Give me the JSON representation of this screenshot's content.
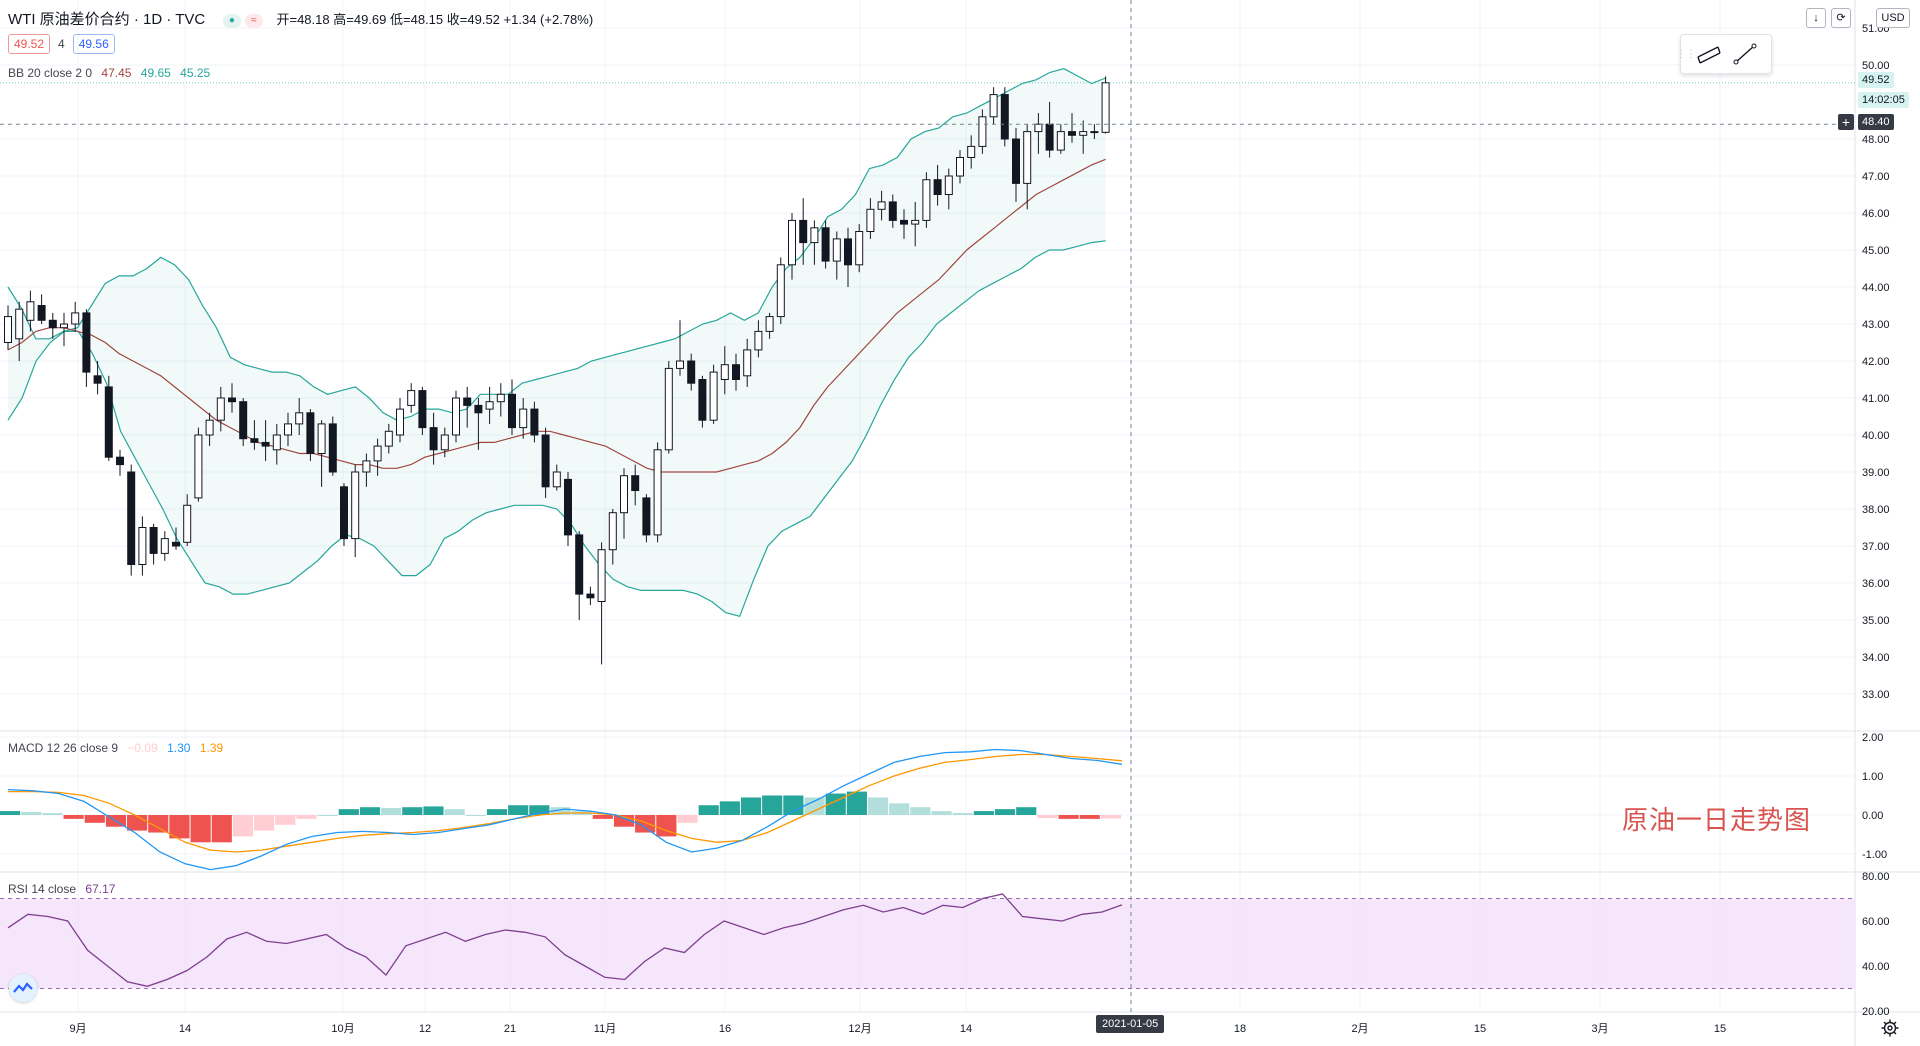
{
  "header": {
    "symbol_line": "WTI 原油差价合约 · 1D · TVC",
    "ohlc": {
      "open_label": "开=",
      "open": "48.18",
      "high_label": "高=",
      "high": "49.69",
      "low_label": "低=",
      "low": "48.15",
      "close_label": "收=",
      "close": "49.52",
      "change": "+1.34 (+2.78%)"
    },
    "sell_price": "49.52",
    "spread": "4",
    "buy_price": "49.56"
  },
  "indicators": {
    "bb": {
      "label": "BB 20 close 2 0",
      "basis": "47.45",
      "upper": "49.65",
      "lower": "45.25"
    },
    "macd": {
      "label": "MACD 12 26 close 9",
      "hist": "−0.09",
      "macd": "1.30",
      "signal": "1.39"
    },
    "rsi": {
      "label": "RSI 14 close",
      "value": "67.17"
    }
  },
  "price_axis": {
    "ticks": [
      "51.00",
      "50.00",
      "48.00",
      "47.00",
      "46.00",
      "45.00",
      "44.00",
      "43.00",
      "42.00",
      "41.00",
      "40.00",
      "39.00",
      "38.00",
      "37.00",
      "36.00",
      "35.00",
      "34.00",
      "33.00"
    ],
    "close_tag": "49.52",
    "countdown": "14:02:05",
    "crosshair_price": "48.40",
    "currency": "USD"
  },
  "macd_axis": {
    "ticks": [
      "2.00",
      "1.00",
      "0.00",
      "-1.00"
    ]
  },
  "rsi_axis": {
    "ticks": [
      "80.00",
      "60.00",
      "40.00",
      "20.00"
    ]
  },
  "time_axis": {
    "labels": [
      "9月",
      "14",
      "10月",
      "12",
      "21",
      "11月",
      "16",
      "12月",
      "14",
      "18",
      "2月",
      "15",
      "3月",
      "15"
    ],
    "crosshair_date": "2021-01-05"
  },
  "annotation": "原油一日走势图",
  "colors": {
    "up": "#ffffff",
    "down": "#131722",
    "bb_band": "#26a69a",
    "bb_basis": "#a1463f",
    "macd_line": "#2196f3",
    "signal_line": "#ff9800",
    "hist_pos_strong": "#26a69a",
    "hist_pos_weak": "#b2dfdb",
    "hist_neg_strong": "#ef5350",
    "hist_neg_weak": "#ffcdd2",
    "rsi_line": "#7e3f8f",
    "rsi_band": "#f1dcfa",
    "annotation": "#d9534f"
  },
  "icons": {
    "download": "arrow-down-icon",
    "fullscreen": "fullscreen-icon",
    "settings": "gear-icon",
    "logo": "tradingview-logo-icon",
    "tools": [
      "parallel-channel-icon",
      "trend-line-icon"
    ]
  },
  "chart_data": {
    "type": "candlestick",
    "title": "WTI 原油差价合约 · 1D · TVC",
    "ylim": [
      32.5,
      51.5
    ],
    "candles": [
      {
        "o": 42.5,
        "h": 43.5,
        "l": 42.3,
        "c": 43.2
      },
      {
        "o": 42.6,
        "h": 43.6,
        "l": 42.0,
        "c": 43.4
      },
      {
        "o": 43.1,
        "h": 43.9,
        "l": 42.8,
        "c": 43.6
      },
      {
        "o": 43.5,
        "h": 43.8,
        "l": 43.0,
        "c": 43.1
      },
      {
        "o": 43.1,
        "h": 43.3,
        "l": 42.6,
        "c": 42.9
      },
      {
        "o": 42.9,
        "h": 43.3,
        "l": 42.4,
        "c": 43.0
      },
      {
        "o": 43.0,
        "h": 43.6,
        "l": 42.8,
        "c": 43.3
      },
      {
        "o": 43.3,
        "h": 43.4,
        "l": 41.3,
        "c": 41.7
      },
      {
        "o": 41.6,
        "h": 42.0,
        "l": 41.1,
        "c": 41.4
      },
      {
        "o": 41.3,
        "h": 41.6,
        "l": 39.3,
        "c": 39.4
      },
      {
        "o": 39.4,
        "h": 39.6,
        "l": 38.9,
        "c": 39.2
      },
      {
        "o": 39.0,
        "h": 39.2,
        "l": 36.2,
        "c": 36.5
      },
      {
        "o": 36.5,
        "h": 37.8,
        "l": 36.2,
        "c": 37.5
      },
      {
        "o": 37.5,
        "h": 37.6,
        "l": 36.5,
        "c": 36.8
      },
      {
        "o": 36.8,
        "h": 37.4,
        "l": 36.6,
        "c": 37.2
      },
      {
        "o": 37.1,
        "h": 37.5,
        "l": 36.9,
        "c": 37.0
      },
      {
        "o": 37.1,
        "h": 38.4,
        "l": 37.0,
        "c": 38.1
      },
      {
        "o": 38.3,
        "h": 40.2,
        "l": 38.2,
        "c": 40.0
      },
      {
        "o": 40.0,
        "h": 40.6,
        "l": 39.7,
        "c": 40.4
      },
      {
        "o": 40.4,
        "h": 41.3,
        "l": 40.1,
        "c": 41.0
      },
      {
        "o": 41.0,
        "h": 41.4,
        "l": 40.6,
        "c": 40.9
      },
      {
        "o": 40.9,
        "h": 41.0,
        "l": 39.7,
        "c": 39.9
      },
      {
        "o": 39.9,
        "h": 40.4,
        "l": 39.6,
        "c": 39.8
      },
      {
        "o": 39.8,
        "h": 40.4,
        "l": 39.3,
        "c": 39.7
      },
      {
        "o": 39.6,
        "h": 40.3,
        "l": 39.2,
        "c": 40.0
      },
      {
        "o": 40.0,
        "h": 40.6,
        "l": 39.7,
        "c": 40.3
      },
      {
        "o": 40.3,
        "h": 41.0,
        "l": 40.0,
        "c": 40.6
      },
      {
        "o": 40.6,
        "h": 40.7,
        "l": 39.3,
        "c": 39.5
      },
      {
        "o": 39.5,
        "h": 40.4,
        "l": 38.6,
        "c": 40.3
      },
      {
        "o": 40.3,
        "h": 40.5,
        "l": 38.9,
        "c": 39.0
      },
      {
        "o": 38.6,
        "h": 38.7,
        "l": 37.0,
        "c": 37.2
      },
      {
        "o": 37.2,
        "h": 39.2,
        "l": 36.7,
        "c": 39.0
      },
      {
        "o": 39.0,
        "h": 39.5,
        "l": 38.6,
        "c": 39.3
      },
      {
        "o": 39.3,
        "h": 39.9,
        "l": 38.9,
        "c": 39.7
      },
      {
        "o": 39.7,
        "h": 40.3,
        "l": 39.5,
        "c": 40.1
      },
      {
        "o": 40.0,
        "h": 41.0,
        "l": 39.8,
        "c": 40.7
      },
      {
        "o": 40.8,
        "h": 41.4,
        "l": 40.6,
        "c": 41.2
      },
      {
        "o": 41.2,
        "h": 41.3,
        "l": 40.0,
        "c": 40.2
      },
      {
        "o": 40.2,
        "h": 40.6,
        "l": 39.2,
        "c": 39.6
      },
      {
        "o": 39.6,
        "h": 40.2,
        "l": 39.4,
        "c": 40.0
      },
      {
        "o": 40.0,
        "h": 41.2,
        "l": 39.8,
        "c": 41.0
      },
      {
        "o": 41.0,
        "h": 41.3,
        "l": 40.2,
        "c": 40.8
      },
      {
        "o": 40.8,
        "h": 41.0,
        "l": 39.6,
        "c": 40.6
      },
      {
        "o": 40.7,
        "h": 41.3,
        "l": 40.3,
        "c": 40.9
      },
      {
        "o": 40.9,
        "h": 41.4,
        "l": 40.5,
        "c": 41.1
      },
      {
        "o": 41.1,
        "h": 41.5,
        "l": 40.0,
        "c": 40.2
      },
      {
        "o": 40.2,
        "h": 41.0,
        "l": 39.9,
        "c": 40.7
      },
      {
        "o": 40.7,
        "h": 40.9,
        "l": 39.8,
        "c": 40.0
      },
      {
        "o": 40.0,
        "h": 40.2,
        "l": 38.3,
        "c": 38.6
      },
      {
        "o": 38.6,
        "h": 39.2,
        "l": 38.5,
        "c": 39.0
      },
      {
        "o": 38.8,
        "h": 39.0,
        "l": 37.0,
        "c": 37.3
      },
      {
        "o": 37.3,
        "h": 37.4,
        "l": 35.0,
        "c": 35.7
      },
      {
        "o": 35.7,
        "h": 35.9,
        "l": 35.4,
        "c": 35.6
      },
      {
        "o": 35.5,
        "h": 37.1,
        "l": 33.8,
        "c": 36.9
      },
      {
        "o": 36.9,
        "h": 38.0,
        "l": 36.5,
        "c": 37.9
      },
      {
        "o": 37.9,
        "h": 39.1,
        "l": 37.2,
        "c": 38.9
      },
      {
        "o": 38.9,
        "h": 39.2,
        "l": 38.1,
        "c": 38.5
      },
      {
        "o": 38.3,
        "h": 38.4,
        "l": 37.1,
        "c": 37.3
      },
      {
        "o": 37.3,
        "h": 39.8,
        "l": 37.1,
        "c": 39.6
      },
      {
        "o": 39.6,
        "h": 42.0,
        "l": 39.5,
        "c": 41.8
      },
      {
        "o": 41.8,
        "h": 43.1,
        "l": 41.6,
        "c": 42.0
      },
      {
        "o": 42.0,
        "h": 42.2,
        "l": 41.2,
        "c": 41.4
      },
      {
        "o": 41.5,
        "h": 41.6,
        "l": 40.2,
        "c": 40.4
      },
      {
        "o": 40.4,
        "h": 41.9,
        "l": 40.3,
        "c": 41.7
      },
      {
        "o": 41.5,
        "h": 42.4,
        "l": 41.1,
        "c": 41.9
      },
      {
        "o": 41.9,
        "h": 42.2,
        "l": 41.2,
        "c": 41.5
      },
      {
        "o": 41.6,
        "h": 42.6,
        "l": 41.3,
        "c": 42.3
      },
      {
        "o": 42.3,
        "h": 43.1,
        "l": 42.1,
        "c": 42.8
      },
      {
        "o": 42.8,
        "h": 43.3,
        "l": 42.6,
        "c": 43.2
      },
      {
        "o": 43.2,
        "h": 44.8,
        "l": 43.0,
        "c": 44.6
      },
      {
        "o": 44.6,
        "h": 46.0,
        "l": 44.2,
        "c": 45.8
      },
      {
        "o": 45.8,
        "h": 46.4,
        "l": 44.6,
        "c": 45.2
      },
      {
        "o": 45.2,
        "h": 45.8,
        "l": 44.6,
        "c": 45.6
      },
      {
        "o": 45.6,
        "h": 45.8,
        "l": 44.5,
        "c": 44.7
      },
      {
        "o": 44.7,
        "h": 45.5,
        "l": 44.2,
        "c": 45.3
      },
      {
        "o": 45.3,
        "h": 45.6,
        "l": 44.0,
        "c": 44.6
      },
      {
        "o": 44.6,
        "h": 45.7,
        "l": 44.4,
        "c": 45.5
      },
      {
        "o": 45.5,
        "h": 46.4,
        "l": 45.3,
        "c": 46.1
      },
      {
        "o": 46.1,
        "h": 46.6,
        "l": 45.8,
        "c": 46.3
      },
      {
        "o": 46.3,
        "h": 46.5,
        "l": 45.6,
        "c": 45.8
      },
      {
        "o": 45.8,
        "h": 46.1,
        "l": 45.3,
        "c": 45.7
      },
      {
        "o": 45.7,
        "h": 46.3,
        "l": 45.1,
        "c": 45.8
      },
      {
        "o": 45.8,
        "h": 47.1,
        "l": 45.6,
        "c": 46.9
      },
      {
        "o": 46.9,
        "h": 47.3,
        "l": 46.2,
        "c": 46.5
      },
      {
        "o": 46.5,
        "h": 47.2,
        "l": 46.1,
        "c": 47.0
      },
      {
        "o": 47.0,
        "h": 47.7,
        "l": 46.8,
        "c": 47.5
      },
      {
        "o": 47.5,
        "h": 48.1,
        "l": 47.2,
        "c": 47.8
      },
      {
        "o": 47.8,
        "h": 48.8,
        "l": 47.6,
        "c": 48.6
      },
      {
        "o": 48.6,
        "h": 49.4,
        "l": 48.4,
        "c": 49.2
      },
      {
        "o": 49.2,
        "h": 49.4,
        "l": 47.8,
        "c": 48.0
      },
      {
        "o": 48.0,
        "h": 48.3,
        "l": 46.3,
        "c": 46.8
      },
      {
        "o": 46.8,
        "h": 48.4,
        "l": 46.1,
        "c": 48.2
      },
      {
        "o": 48.2,
        "h": 48.7,
        "l": 47.6,
        "c": 48.4
      },
      {
        "o": 48.4,
        "h": 49.0,
        "l": 47.5,
        "c": 47.7
      },
      {
        "o": 47.7,
        "h": 48.4,
        "l": 47.6,
        "c": 48.2
      },
      {
        "o": 48.2,
        "h": 48.7,
        "l": 47.9,
        "c": 48.1
      },
      {
        "o": 48.1,
        "h": 48.5,
        "l": 47.6,
        "c": 48.2
      },
      {
        "o": 48.2,
        "h": 48.4,
        "l": 48.0,
        "c": 48.2
      },
      {
        "o": 48.18,
        "h": 49.69,
        "l": 48.15,
        "c": 49.52
      }
    ],
    "bb_upper": [
      44.0,
      43.4,
      42.6,
      42.6,
      42.8,
      42.9,
      43.5,
      44.1,
      44.3,
      44.3,
      44.5,
      44.8,
      44.6,
      44.2,
      43.5,
      42.9,
      42.1,
      41.9,
      41.8,
      41.7,
      41.7,
      41.6,
      41.3,
      41.1,
      41.2,
      41.3,
      41.0,
      40.6,
      40.4,
      40.5,
      40.7,
      40.7,
      40.6,
      40.7,
      41.1,
      41.1,
      41.1,
      41.4,
      41.5,
      41.6,
      41.7,
      41.8,
      42.0,
      42.1,
      42.2,
      42.3,
      42.4,
      42.5,
      42.6,
      42.8,
      43.0,
      43.1,
      43.3,
      43.1,
      43.3,
      44.0,
      44.5,
      44.8,
      45.3,
      45.9,
      46.1,
      46.5,
      47.2,
      47.3,
      47.5,
      48.0,
      48.2,
      48.3,
      48.6,
      48.7,
      48.9,
      49.1,
      49.3,
      49.5,
      49.6,
      49.8,
      49.9,
      49.7,
      49.5,
      49.65
    ],
    "bb_basis": [
      42.3,
      42.5,
      42.8,
      42.9,
      42.9,
      42.8,
      42.7,
      42.5,
      42.2,
      42.0,
      41.8,
      41.6,
      41.3,
      41.0,
      40.7,
      40.4,
      40.2,
      40.0,
      39.8,
      39.7,
      39.6,
      39.5,
      39.5,
      39.4,
      39.3,
      39.2,
      39.2,
      39.1,
      39.1,
      39.2,
      39.4,
      39.5,
      39.6,
      39.7,
      39.8,
      39.8,
      39.9,
      40.0,
      40.1,
      40.1,
      40.0,
      39.9,
      39.8,
      39.7,
      39.5,
      39.3,
      39.1,
      39.0,
      39.0,
      39.0,
      39.0,
      39.0,
      39.1,
      39.2,
      39.3,
      39.5,
      39.8,
      40.2,
      40.8,
      41.3,
      41.7,
      42.1,
      42.5,
      42.9,
      43.3,
      43.6,
      43.9,
      44.2,
      44.6,
      45.0,
      45.3,
      45.6,
      45.9,
      46.2,
      46.5,
      46.7,
      46.9,
      47.1,
      47.3,
      47.45
    ],
    "bb_lower": [
      40.4,
      41.0,
      42.0,
      42.5,
      42.8,
      42.8,
      42.2,
      41.4,
      40.1,
      39.4,
      38.7,
      38.0,
      37.2,
      36.6,
      36.0,
      35.9,
      35.7,
      35.7,
      35.8,
      35.9,
      36.0,
      36.3,
      36.6,
      37.0,
      37.3,
      37.2,
      37.0,
      36.6,
      36.2,
      36.2,
      36.5,
      37.2,
      37.4,
      37.7,
      37.9,
      38.0,
      38.1,
      38.1,
      38.1,
      38.0,
      37.6,
      37.0,
      36.5,
      36.1,
      35.9,
      35.8,
      35.8,
      35.8,
      35.8,
      35.7,
      35.5,
      35.2,
      35.1,
      36.1,
      37.0,
      37.4,
      37.6,
      37.8,
      38.3,
      38.8,
      39.3,
      40.0,
      40.8,
      41.5,
      42.1,
      42.5,
      43.0,
      43.3,
      43.6,
      43.9,
      44.1,
      44.3,
      44.5,
      44.8,
      45.0,
      45.0,
      45.1,
      45.2,
      45.25
    ],
    "macd": [
      0.65,
      0.62,
      0.55,
      0.35,
      -0.05,
      -0.45,
      -0.95,
      -1.25,
      -1.4,
      -1.3,
      -1.05,
      -0.75,
      -0.55,
      -0.45,
      -0.42,
      -0.45,
      -0.5,
      -0.45,
      -0.35,
      -0.25,
      -0.1,
      0.05,
      0.15,
      0.1,
      0.0,
      -0.25,
      -0.7,
      -0.95,
      -0.85,
      -0.65,
      -0.3,
      0.1,
      0.4,
      0.75,
      1.05,
      1.35,
      1.5,
      1.6,
      1.62,
      1.68,
      1.65,
      1.55,
      1.45,
      1.4,
      1.3
    ],
    "macd_signal": [
      0.6,
      0.6,
      0.58,
      0.5,
      0.3,
      0.0,
      -0.35,
      -0.7,
      -0.9,
      -0.95,
      -0.9,
      -0.8,
      -0.7,
      -0.6,
      -0.52,
      -0.48,
      -0.45,
      -0.4,
      -0.32,
      -0.22,
      -0.1,
      0.0,
      0.05,
      0.05,
      0.0,
      -0.15,
      -0.4,
      -0.6,
      -0.7,
      -0.65,
      -0.45,
      -0.15,
      0.15,
      0.45,
      0.75,
      1.0,
      1.2,
      1.35,
      1.42,
      1.5,
      1.55,
      1.55,
      1.5,
      1.45,
      1.39
    ],
    "macd_hist": [
      0.1,
      0.08,
      0.05,
      -0.1,
      -0.2,
      -0.3,
      -0.4,
      -0.45,
      -0.6,
      -0.7,
      -0.7,
      -0.55,
      -0.4,
      -0.25,
      -0.1,
      0.0,
      0.15,
      0.2,
      0.18,
      0.2,
      0.22,
      0.15,
      0.0,
      0.15,
      0.25,
      0.25,
      0.2,
      0.1,
      -0.1,
      -0.3,
      -0.45,
      -0.55,
      -0.2,
      0.25,
      0.35,
      0.45,
      0.5,
      0.5,
      0.45,
      0.55,
      0.6,
      0.45,
      0.3,
      0.2,
      0.1,
      0.05,
      0.1,
      0.15,
      0.2,
      -0.08,
      -0.1,
      -0.1,
      -0.09
    ],
    "rsi": [
      57,
      63,
      62,
      60,
      47,
      40,
      33,
      31,
      34,
      38,
      44,
      52,
      55,
      51,
      50,
      52,
      54,
      48,
      44,
      36,
      49,
      52,
      55,
      51,
      54,
      56,
      55,
      53,
      45,
      40,
      35,
      34,
      42,
      48,
      46,
      54,
      60,
      57,
      54,
      57,
      59,
      62,
      65,
      67,
      64,
      66,
      63,
      67,
      66,
      70,
      72,
      62,
      61,
      60,
      63,
      64,
      67.17
    ],
    "rsi_levels": [
      70,
      30
    ]
  }
}
